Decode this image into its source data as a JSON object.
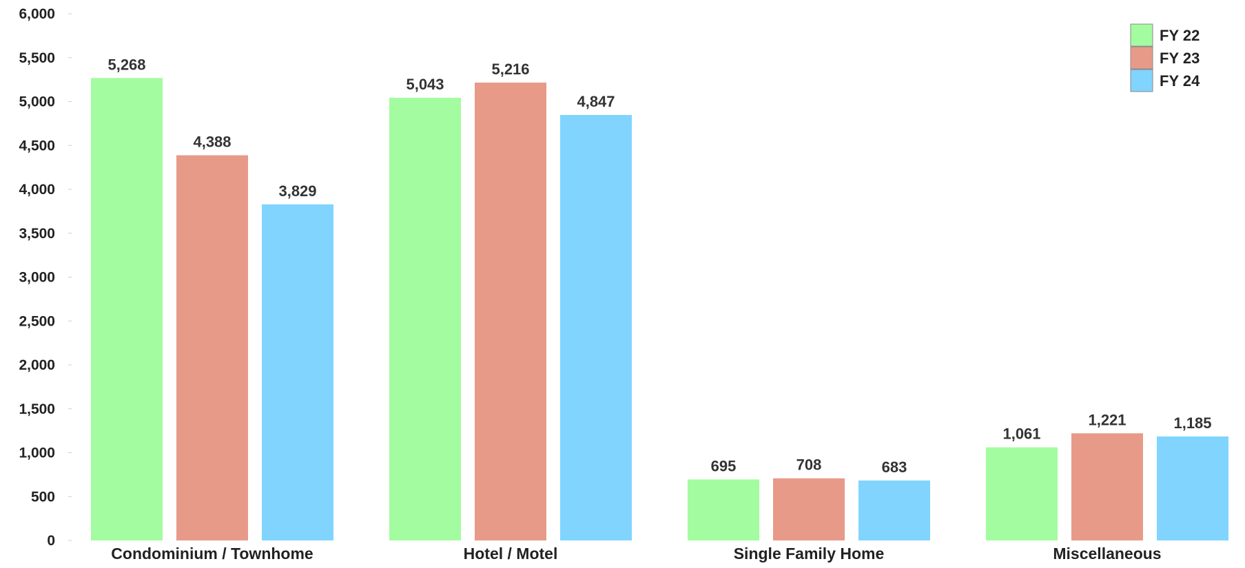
{
  "chart_data": {
    "type": "bar",
    "categories": [
      "Condominium / Townhome",
      "Hotel / Motel",
      "Single Family Home",
      "Miscellaneous"
    ],
    "series": [
      {
        "name": "FY 22",
        "color": "#a3fc9f",
        "values": [
          5268,
          5043,
          695,
          1061
        ],
        "labels": [
          "5,268",
          "5,043",
          "695",
          "1,061"
        ]
      },
      {
        "name": "FY 23",
        "color": "#e89a89",
        "values": [
          4388,
          5216,
          708,
          1221
        ],
        "labels": [
          "4,388",
          "5,216",
          "708",
          "1,221"
        ]
      },
      {
        "name": "FY 24",
        "color": "#80d4fe",
        "values": [
          3829,
          4847,
          683,
          1185
        ],
        "labels": [
          "3,829",
          "4,847",
          "683",
          "1,185"
        ]
      }
    ],
    "ylim": [
      0,
      6000
    ],
    "y_ticks": [
      0,
      500,
      1000,
      1500,
      2000,
      2500,
      3000,
      3500,
      4000,
      4500,
      5000,
      5500,
      6000
    ],
    "y_tick_labels": [
      "0",
      "500",
      "1,000",
      "1,500",
      "2,000",
      "2,500",
      "3,000",
      "3,500",
      "4,000",
      "4,500",
      "5,000",
      "5,500",
      "6,000"
    ],
    "grid": false,
    "legend_position": "top-right"
  }
}
